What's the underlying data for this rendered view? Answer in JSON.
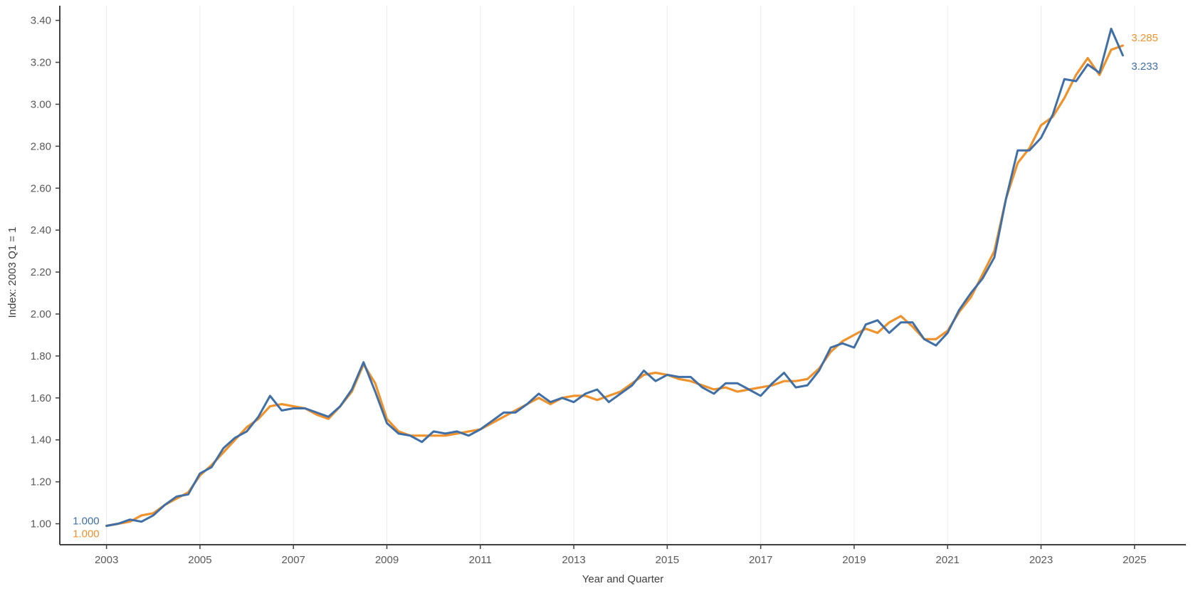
{
  "chart_data": {
    "type": "line",
    "title": "",
    "xlabel": "Year and Quarter",
    "ylabel": "Index: 2003 Q1 = 1",
    "xlim": [
      2002.0,
      2026.1
    ],
    "ylim": [
      0.9,
      3.47
    ],
    "x_ticks": [
      "2003",
      "2005",
      "2007",
      "2009",
      "2011",
      "2013",
      "2015",
      "2017",
      "2019",
      "2021",
      "2023",
      "2025"
    ],
    "y_ticks": [
      "1.00",
      "1.20",
      "1.40",
      "1.60",
      "1.80",
      "2.00",
      "2.20",
      "2.40",
      "2.60",
      "2.80",
      "3.00",
      "3.20",
      "3.40"
    ],
    "grid": "vertical-at-year-ticks",
    "colors": {
      "orange": "#f0922b",
      "blue": "#3f6fa6"
    },
    "series": [
      {
        "color": "#f0922b",
        "start_label": "1.000",
        "end_label": "3.285",
        "points": [
          [
            2003.0,
            0.99
          ],
          [
            2003.25,
            1.0
          ],
          [
            2003.5,
            1.01
          ],
          [
            2003.75,
            1.04
          ],
          [
            2004.0,
            1.05
          ],
          [
            2004.25,
            1.09
          ],
          [
            2004.5,
            1.12
          ],
          [
            2004.75,
            1.15
          ],
          [
            2005.0,
            1.23
          ],
          [
            2005.25,
            1.28
          ],
          [
            2005.5,
            1.34
          ],
          [
            2005.75,
            1.4
          ],
          [
            2006.0,
            1.46
          ],
          [
            2006.25,
            1.5
          ],
          [
            2006.5,
            1.56
          ],
          [
            2006.75,
            1.57
          ],
          [
            2007.0,
            1.56
          ],
          [
            2007.25,
            1.55
          ],
          [
            2007.5,
            1.52
          ],
          [
            2007.75,
            1.5
          ],
          [
            2008.0,
            1.56
          ],
          [
            2008.25,
            1.63
          ],
          [
            2008.5,
            1.76
          ],
          [
            2008.75,
            1.67
          ],
          [
            2009.0,
            1.5
          ],
          [
            2009.25,
            1.44
          ],
          [
            2009.5,
            1.42
          ],
          [
            2009.75,
            1.42
          ],
          [
            2010.0,
            1.42
          ],
          [
            2010.25,
            1.42
          ],
          [
            2010.5,
            1.43
          ],
          [
            2010.75,
            1.44
          ],
          [
            2011.0,
            1.45
          ],
          [
            2011.25,
            1.48
          ],
          [
            2011.5,
            1.51
          ],
          [
            2011.75,
            1.54
          ],
          [
            2012.0,
            1.57
          ],
          [
            2012.25,
            1.6
          ],
          [
            2012.5,
            1.57
          ],
          [
            2012.75,
            1.6
          ],
          [
            2013.0,
            1.61
          ],
          [
            2013.25,
            1.61
          ],
          [
            2013.5,
            1.59
          ],
          [
            2013.75,
            1.61
          ],
          [
            2014.0,
            1.63
          ],
          [
            2014.25,
            1.67
          ],
          [
            2014.5,
            1.71
          ],
          [
            2014.75,
            1.72
          ],
          [
            2015.0,
            1.71
          ],
          [
            2015.25,
            1.69
          ],
          [
            2015.5,
            1.68
          ],
          [
            2015.75,
            1.66
          ],
          [
            2016.0,
            1.64
          ],
          [
            2016.25,
            1.65
          ],
          [
            2016.5,
            1.63
          ],
          [
            2016.75,
            1.64
          ],
          [
            2017.0,
            1.65
          ],
          [
            2017.25,
            1.66
          ],
          [
            2017.5,
            1.68
          ],
          [
            2017.75,
            1.68
          ],
          [
            2018.0,
            1.69
          ],
          [
            2018.25,
            1.74
          ],
          [
            2018.5,
            1.82
          ],
          [
            2018.75,
            1.87
          ],
          [
            2019.0,
            1.9
          ],
          [
            2019.25,
            1.93
          ],
          [
            2019.5,
            1.91
          ],
          [
            2019.75,
            1.96
          ],
          [
            2020.0,
            1.99
          ],
          [
            2020.25,
            1.94
          ],
          [
            2020.5,
            1.88
          ],
          [
            2020.75,
            1.88
          ],
          [
            2021.0,
            1.92
          ],
          [
            2021.25,
            2.01
          ],
          [
            2021.5,
            2.08
          ],
          [
            2021.75,
            2.19
          ],
          [
            2022.0,
            2.3
          ],
          [
            2022.25,
            2.55
          ],
          [
            2022.5,
            2.72
          ],
          [
            2022.75,
            2.79
          ],
          [
            2023.0,
            2.9
          ],
          [
            2023.25,
            2.94
          ],
          [
            2023.5,
            3.03
          ],
          [
            2023.75,
            3.14
          ],
          [
            2024.0,
            3.22
          ],
          [
            2024.25,
            3.14
          ],
          [
            2024.5,
            3.26
          ],
          [
            2024.75,
            3.28
          ]
        ]
      },
      {
        "color": "#3f6fa6",
        "start_label": "1.000",
        "end_label": "3.233",
        "points": [
          [
            2003.0,
            0.99
          ],
          [
            2003.25,
            1.0
          ],
          [
            2003.5,
            1.02
          ],
          [
            2003.75,
            1.01
          ],
          [
            2004.0,
            1.04
          ],
          [
            2004.25,
            1.09
          ],
          [
            2004.5,
            1.13
          ],
          [
            2004.75,
            1.14
          ],
          [
            2005.0,
            1.24
          ],
          [
            2005.25,
            1.27
          ],
          [
            2005.5,
            1.36
          ],
          [
            2005.75,
            1.41
          ],
          [
            2006.0,
            1.44
          ],
          [
            2006.25,
            1.51
          ],
          [
            2006.5,
            1.61
          ],
          [
            2006.75,
            1.54
          ],
          [
            2007.0,
            1.55
          ],
          [
            2007.25,
            1.55
          ],
          [
            2007.5,
            1.53
          ],
          [
            2007.75,
            1.51
          ],
          [
            2008.0,
            1.56
          ],
          [
            2008.25,
            1.64
          ],
          [
            2008.5,
            1.77
          ],
          [
            2008.75,
            1.63
          ],
          [
            2009.0,
            1.48
          ],
          [
            2009.25,
            1.43
          ],
          [
            2009.5,
            1.42
          ],
          [
            2009.75,
            1.39
          ],
          [
            2010.0,
            1.44
          ],
          [
            2010.25,
            1.43
          ],
          [
            2010.5,
            1.44
          ],
          [
            2010.75,
            1.42
          ],
          [
            2011.0,
            1.45
          ],
          [
            2011.25,
            1.49
          ],
          [
            2011.5,
            1.53
          ],
          [
            2011.75,
            1.53
          ],
          [
            2012.0,
            1.57
          ],
          [
            2012.25,
            1.62
          ],
          [
            2012.5,
            1.58
          ],
          [
            2012.75,
            1.6
          ],
          [
            2013.0,
            1.58
          ],
          [
            2013.25,
            1.62
          ],
          [
            2013.5,
            1.64
          ],
          [
            2013.75,
            1.58
          ],
          [
            2014.0,
            1.62
          ],
          [
            2014.25,
            1.66
          ],
          [
            2014.5,
            1.73
          ],
          [
            2014.75,
            1.68
          ],
          [
            2015.0,
            1.71
          ],
          [
            2015.25,
            1.7
          ],
          [
            2015.5,
            1.7
          ],
          [
            2015.75,
            1.65
          ],
          [
            2016.0,
            1.62
          ],
          [
            2016.25,
            1.67
          ],
          [
            2016.5,
            1.67
          ],
          [
            2016.75,
            1.64
          ],
          [
            2017.0,
            1.61
          ],
          [
            2017.25,
            1.67
          ],
          [
            2017.5,
            1.72
          ],
          [
            2017.75,
            1.65
          ],
          [
            2018.0,
            1.66
          ],
          [
            2018.25,
            1.73
          ],
          [
            2018.5,
            1.84
          ],
          [
            2018.75,
            1.86
          ],
          [
            2019.0,
            1.84
          ],
          [
            2019.25,
            1.95
          ],
          [
            2019.5,
            1.97
          ],
          [
            2019.75,
            1.91
          ],
          [
            2020.0,
            1.96
          ],
          [
            2020.25,
            1.96
          ],
          [
            2020.5,
            1.88
          ],
          [
            2020.75,
            1.85
          ],
          [
            2021.0,
            1.91
          ],
          [
            2021.25,
            2.02
          ],
          [
            2021.5,
            2.1
          ],
          [
            2021.75,
            2.17
          ],
          [
            2022.0,
            2.27
          ],
          [
            2022.25,
            2.55
          ],
          [
            2022.5,
            2.78
          ],
          [
            2022.75,
            2.78
          ],
          [
            2023.0,
            2.84
          ],
          [
            2023.25,
            2.95
          ],
          [
            2023.5,
            3.12
          ],
          [
            2023.75,
            3.11
          ],
          [
            2024.0,
            3.19
          ],
          [
            2024.25,
            3.15
          ],
          [
            2024.5,
            3.36
          ],
          [
            2024.75,
            3.233
          ]
        ]
      }
    ]
  }
}
